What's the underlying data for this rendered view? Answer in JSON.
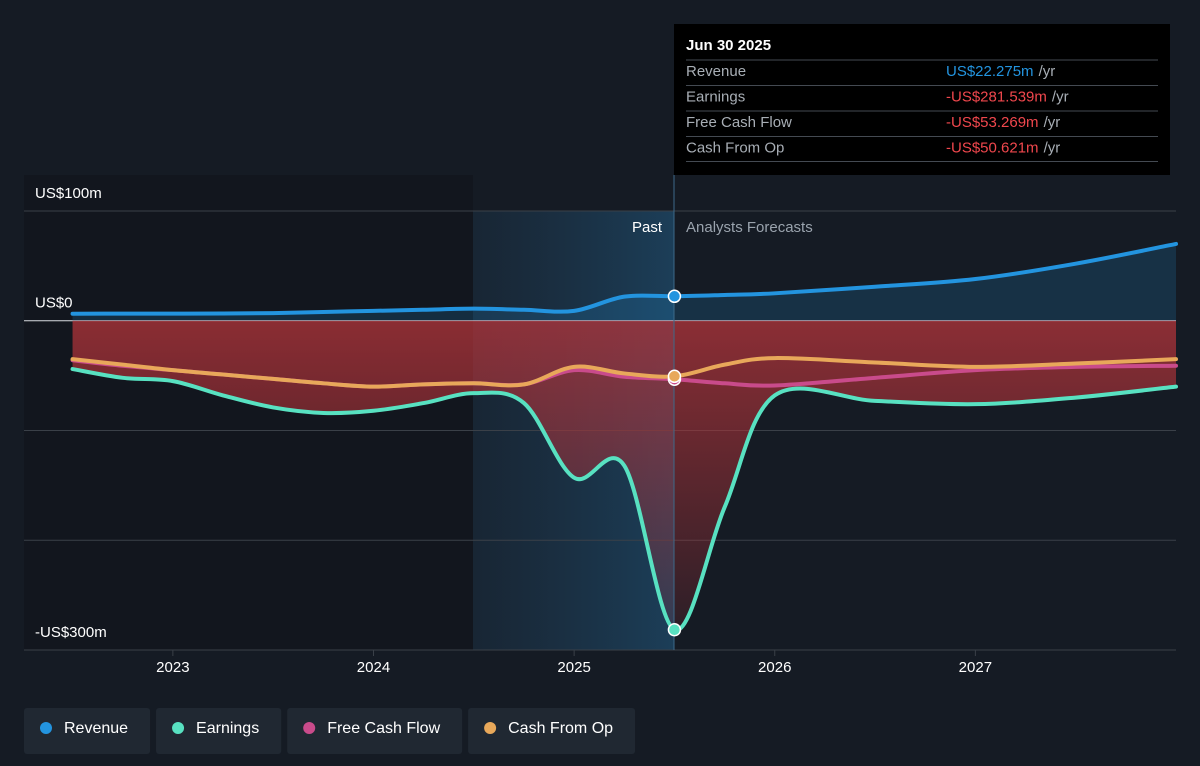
{
  "chart_data": {
    "type": "line",
    "past_label": "Past",
    "forecast_label": "Analysts Forecasts",
    "x": [
      2022.5,
      2022.75,
      2023,
      2023.25,
      2023.5,
      2023.75,
      2024,
      2024.25,
      2024.5,
      2024.75,
      2025,
      2025.25,
      2025.5,
      2025.75,
      2026,
      2026.5,
      2027,
      2027.5,
      2028
    ],
    "series": [
      {
        "name": "Revenue",
        "color": "#2394df",
        "values": [
          6.4,
          6.5,
          6.5,
          6.6,
          7,
          8,
          9,
          10,
          11,
          10,
          9,
          22,
          22.275,
          23.5,
          25,
          31,
          38,
          52,
          70
        ]
      },
      {
        "name": "Earnings",
        "color": "#58e1c1",
        "values": [
          -44,
          -52,
          -55,
          -68,
          -79,
          -84,
          -82,
          -75,
          -66,
          -75,
          -143,
          -132,
          -281.539,
          -170,
          -68,
          -73,
          -76,
          -70,
          -60
        ]
      },
      {
        "name": "Free Cash Flow",
        "color": "#c94b8b",
        "values": [
          -36,
          -41,
          -45,
          -49,
          -53,
          -57,
          -60,
          -58,
          -57,
          -58,
          -45,
          -51,
          -53.269,
          -57,
          -59,
          -52,
          -45,
          -42,
          -41
        ]
      },
      {
        "name": "Cash From Op",
        "color": "#e8a85a",
        "values": [
          -35,
          -40,
          -45,
          -49,
          -53,
          -57,
          -60,
          -58,
          -57,
          -58,
          -42,
          -48,
          -50.621,
          -40,
          -34,
          -38,
          -42,
          -39,
          -35
        ]
      }
    ],
    "xlim": [
      2022.258,
      2028
    ],
    "xticks": [
      2023,
      2024,
      2025,
      2026,
      2027
    ],
    "ylim": [
      -300,
      100
    ],
    "yticks": [
      {
        "value": 100,
        "label": "US$100m"
      },
      {
        "value": 0,
        "label": "US$0"
      },
      {
        "value": -100,
        "label": null
      },
      {
        "value": -200,
        "label": null
      },
      {
        "value": -300,
        "label": "-US$300m"
      }
    ],
    "grid": true,
    "tooltip": {
      "title": "Jun 30 2025",
      "values": [
        "US$22.275m",
        "-US$281.539m",
        "-US$53.269m",
        "-US$50.621m"
      ],
      "unit": "/yr"
    }
  }
}
